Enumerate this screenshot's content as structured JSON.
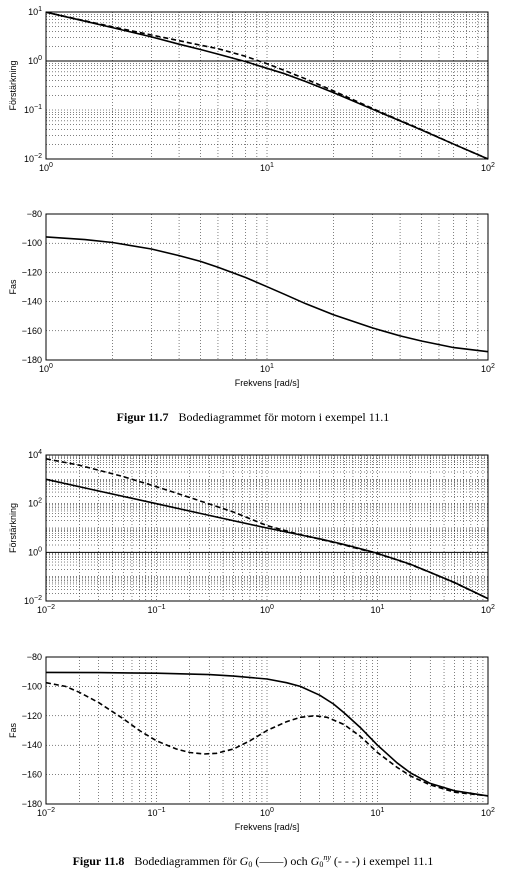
{
  "figures": [
    {
      "caption_number": "Figur 11.7",
      "caption_text": "Bodediagrammet för motorn i exempel 11.1"
    },
    {
      "caption_number": "Figur 11.8",
      "caption_pre": "Bodediagrammen för",
      "caption_sym": "G",
      "caption_sym_sub": "0",
      "caption_solid_mark": "(——)",
      "caption_mid": "och",
      "caption_sym2": "G",
      "caption_sym2_sub": "0",
      "caption_sym2_sup": "ny",
      "caption_dashed_mark": "(- - -)",
      "caption_post": "i exempel 11.1"
    }
  ],
  "chart_data": [
    {
      "type": "line",
      "figure": "Figur 11.7",
      "xscale": "log",
      "yscale": "log",
      "xlim": [
        1,
        100
      ],
      "ylim": [
        0.01,
        10
      ],
      "xticks": [
        {
          "v": 1,
          "base": "10",
          "exp": "0"
        },
        {
          "v": 10,
          "base": "10",
          "exp": "1"
        },
        {
          "v": 100,
          "base": "10",
          "exp": "2"
        }
      ],
      "yticks": [
        {
          "v": 0.01,
          "base": "10",
          "exp": "−2"
        },
        {
          "v": 0.1,
          "base": "10",
          "exp": "−1"
        },
        {
          "v": 1,
          "base": "10",
          "exp": "0"
        },
        {
          "v": 10,
          "base": "10",
          "exp": "1"
        }
      ],
      "xlabel": "",
      "ylabel": "Förstärkning",
      "grid": true,
      "hlines": [
        1
      ],
      "series": [
        {
          "style": "solid",
          "x": [
            1,
            1.5,
            2,
            3,
            4,
            5,
            6,
            8,
            10,
            12,
            15,
            20,
            30,
            40,
            50,
            70,
            100
          ],
          "y": [
            9.9,
            6.5,
            4.8,
            3.1,
            2.2,
            1.72,
            1.38,
            0.97,
            0.71,
            0.55,
            0.38,
            0.227,
            0.104,
            0.06,
            0.039,
            0.02,
            0.01
          ]
        },
        {
          "style": "dashed",
          "x": [
            1,
            1.5,
            2,
            3,
            4,
            5,
            6,
            8,
            10,
            12,
            15,
            20,
            30,
            40,
            50,
            70,
            100
          ],
          "y": [
            9.9,
            6.6,
            5.0,
            3.4,
            2.6,
            2.1,
            1.78,
            1.25,
            0.88,
            0.64,
            0.43,
            0.245,
            0.108,
            0.061,
            0.04,
            0.02,
            0.01
          ]
        }
      ]
    },
    {
      "type": "line",
      "figure": "Figur 11.7",
      "xscale": "log",
      "yscale": "linear",
      "xlim": [
        1,
        100
      ],
      "ylim": [
        -180,
        -80
      ],
      "xticks": [
        {
          "v": 1,
          "base": "10",
          "exp": "0"
        },
        {
          "v": 10,
          "base": "10",
          "exp": "1"
        },
        {
          "v": 100,
          "base": "10",
          "exp": "2"
        }
      ],
      "yticks": [
        {
          "v": -80,
          "label": "−80"
        },
        {
          "v": -100,
          "label": "−100"
        },
        {
          "v": -120,
          "label": "−120"
        },
        {
          "v": -140,
          "label": "−140"
        },
        {
          "v": -160,
          "label": "−160"
        },
        {
          "v": -180,
          "label": "−180"
        }
      ],
      "xlabel": "Frekvens [rad/s]",
      "ylabel": "Fas",
      "grid": true,
      "series": [
        {
          "style": "solid",
          "x": [
            1,
            1.5,
            2,
            3,
            4,
            5,
            6,
            8,
            10,
            12,
            15,
            20,
            30,
            40,
            50,
            70,
            100
          ],
          "y": [
            -95.7,
            -97.5,
            -99.5,
            -104,
            -108.5,
            -112.5,
            -116.5,
            -123.5,
            -129.8,
            -135,
            -141.5,
            -149,
            -158,
            -163.5,
            -167,
            -171.5,
            -174.3
          ]
        }
      ]
    },
    {
      "type": "line",
      "figure": "Figur 11.8",
      "xscale": "log",
      "yscale": "log",
      "xlim": [
        0.01,
        100
      ],
      "ylim": [
        0.01,
        10000
      ],
      "xticks": [
        {
          "v": 0.01,
          "base": "10",
          "exp": "−2"
        },
        {
          "v": 0.1,
          "base": "10",
          "exp": "−1"
        },
        {
          "v": 1,
          "base": "10",
          "exp": "0"
        },
        {
          "v": 10,
          "base": "10",
          "exp": "1"
        },
        {
          "v": 100,
          "base": "10",
          "exp": "2"
        }
      ],
      "yticks": [
        {
          "v": 0.01,
          "base": "10",
          "exp": "−2"
        },
        {
          "v": 1,
          "base": "10",
          "exp": "0"
        },
        {
          "v": 100,
          "base": "10",
          "exp": "2"
        },
        {
          "v": 10000,
          "base": "10",
          "exp": "4"
        }
      ],
      "xlabel": "",
      "ylabel": "Förstärkning",
      "grid": true,
      "hlines": [
        1
      ],
      "series": [
        {
          "style": "solid",
          "x": [
            0.01,
            0.03,
            0.1,
            0.3,
            1,
            2,
            3,
            5,
            8,
            10,
            15,
            20,
            30,
            50,
            100
          ],
          "y": [
            1000,
            330,
            100,
            33,
            10,
            5.2,
            3.6,
            2.1,
            1.2,
            0.9,
            0.5,
            0.32,
            0.15,
            0.057,
            0.0125
          ]
        },
        {
          "style": "dashed",
          "x": [
            0.01,
            0.02,
            0.05,
            0.1,
            0.2,
            0.5,
            1,
            2,
            3,
            5,
            8,
            10,
            15,
            20,
            30,
            50,
            100
          ],
          "y": [
            7000,
            3800,
            1300,
            500,
            180,
            45,
            12.5,
            5.3,
            3.5,
            2.0,
            1.15,
            0.88,
            0.49,
            0.31,
            0.15,
            0.056,
            0.0125
          ]
        }
      ]
    },
    {
      "type": "line",
      "figure": "Figur 11.8",
      "xscale": "log",
      "yscale": "linear",
      "xlim": [
        0.01,
        100
      ],
      "ylim": [
        -180,
        -80
      ],
      "xticks": [
        {
          "v": 0.01,
          "base": "10",
          "exp": "−2"
        },
        {
          "v": 0.1,
          "base": "10",
          "exp": "−1"
        },
        {
          "v": 1,
          "base": "10",
          "exp": "0"
        },
        {
          "v": 10,
          "base": "10",
          "exp": "1"
        },
        {
          "v": 100,
          "base": "10",
          "exp": "2"
        }
      ],
      "yticks": [
        {
          "v": -80,
          "label": "−80"
        },
        {
          "v": -100,
          "label": "−100"
        },
        {
          "v": -120,
          "label": "−120"
        },
        {
          "v": -140,
          "label": "−140"
        },
        {
          "v": -160,
          "label": "−160"
        },
        {
          "v": -180,
          "label": "−180"
        }
      ],
      "xlabel": "Frekvens [rad/s]",
      "ylabel": "Fas",
      "grid": true,
      "series": [
        {
          "style": "solid",
          "x": [
            0.01,
            0.03,
            0.1,
            0.3,
            0.5,
            1,
            1.5,
            2,
            3,
            4,
            5,
            7,
            10,
            15,
            20,
            30,
            50,
            100
          ],
          "y": [
            -90.5,
            -90.6,
            -91,
            -92,
            -93,
            -95,
            -97.5,
            -100,
            -106,
            -112,
            -118,
            -128,
            -140,
            -152,
            -159,
            -166,
            -171,
            -174.5
          ]
        },
        {
          "style": "dashed",
          "x": [
            0.01,
            0.015,
            0.02,
            0.03,
            0.05,
            0.07,
            0.1,
            0.15,
            0.2,
            0.27,
            0.35,
            0.5,
            0.7,
            1,
            1.5,
            2,
            2.7,
            3.5,
            5,
            7,
            10,
            15,
            20,
            30,
            50,
            100
          ],
          "y": [
            -97.5,
            -100,
            -104,
            -111,
            -122,
            -130,
            -137,
            -142.5,
            -145,
            -146,
            -145.5,
            -142.5,
            -137,
            -130,
            -124,
            -121,
            -120,
            -121,
            -126,
            -134,
            -145,
            -155,
            -161,
            -167,
            -172,
            -174.5
          ]
        }
      ]
    }
  ]
}
